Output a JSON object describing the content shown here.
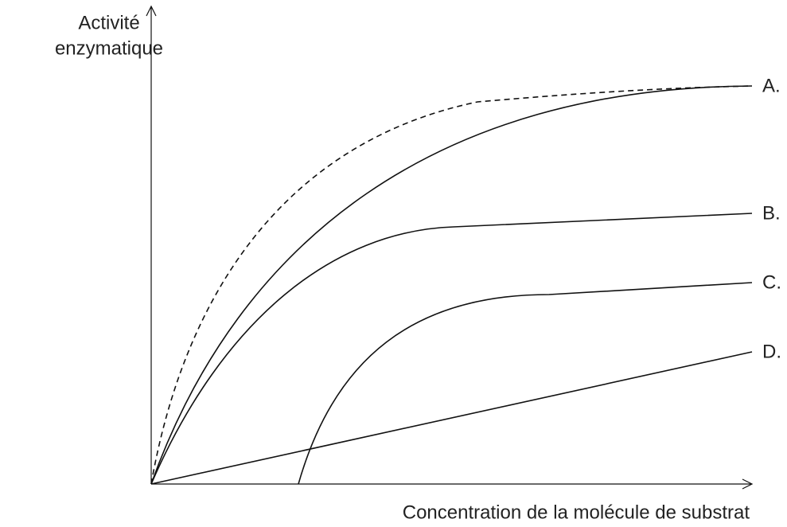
{
  "axes": {
    "y_label": [
      "Activité",
      "enzymatique"
    ],
    "x_label": "Concentration de la molécule de substrat"
  },
  "curves": [
    {
      "label": "A."
    },
    {
      "label": "B."
    },
    {
      "label": "C."
    },
    {
      "label": "D."
    }
  ]
}
